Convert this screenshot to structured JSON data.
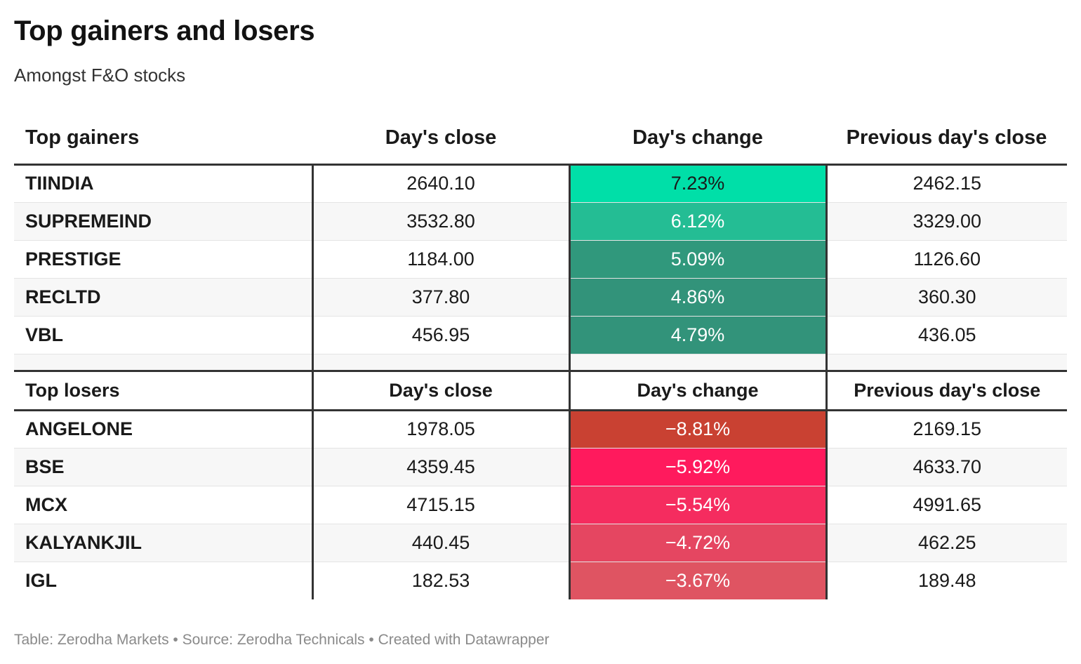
{
  "title": "Top gainers and losers",
  "subtitle": "Amongst F&O stocks",
  "footer": "Table: Zerodha Markets • Source: Zerodha Technicals • Created with Datawrapper",
  "colors": {
    "gain_scale": [
      "#00dfa8",
      "#24bd94",
      "#30987c",
      "#32937a",
      "#32937a"
    ],
    "loss_scale": [
      "#c94132",
      "#ff1a5d",
      "#f52c5f",
      "#e54661",
      "#df5462"
    ]
  },
  "chart_data": {
    "type": "table",
    "gainers": {
      "headers": [
        "Top gainers",
        "Day's close",
        "Day's change",
        "Previous day's close"
      ],
      "rows": [
        {
          "name": "TIINDIA",
          "close": "2640.10",
          "change": "7.23%",
          "prev": "2462.15"
        },
        {
          "name": "SUPREMEIND",
          "close": "3532.80",
          "change": "6.12%",
          "prev": "3329.00"
        },
        {
          "name": "PRESTIGE",
          "close": "1184.00",
          "change": "5.09%",
          "prev": "1126.60"
        },
        {
          "name": "RECLTD",
          "close": "377.80",
          "change": "4.86%",
          "prev": "360.30"
        },
        {
          "name": "VBL",
          "close": "456.95",
          "change": "4.79%",
          "prev": "436.05"
        }
      ]
    },
    "losers": {
      "headers": [
        "Top losers",
        "Day's close",
        "Day's change",
        "Previous day's close"
      ],
      "rows": [
        {
          "name": "ANGELONE",
          "close": "1978.05",
          "change": "−8.81%",
          "prev": "2169.15"
        },
        {
          "name": "BSE",
          "close": "4359.45",
          "change": "−5.92%",
          "prev": "4633.70"
        },
        {
          "name": "MCX",
          "close": "4715.15",
          "change": "−5.54%",
          "prev": "4991.65"
        },
        {
          "name": "KALYANKJIL",
          "close": "440.45",
          "change": "−4.72%",
          "prev": "462.25"
        },
        {
          "name": "IGL",
          "close": "182.53",
          "change": "−3.67%",
          "prev": "189.48"
        }
      ]
    }
  }
}
